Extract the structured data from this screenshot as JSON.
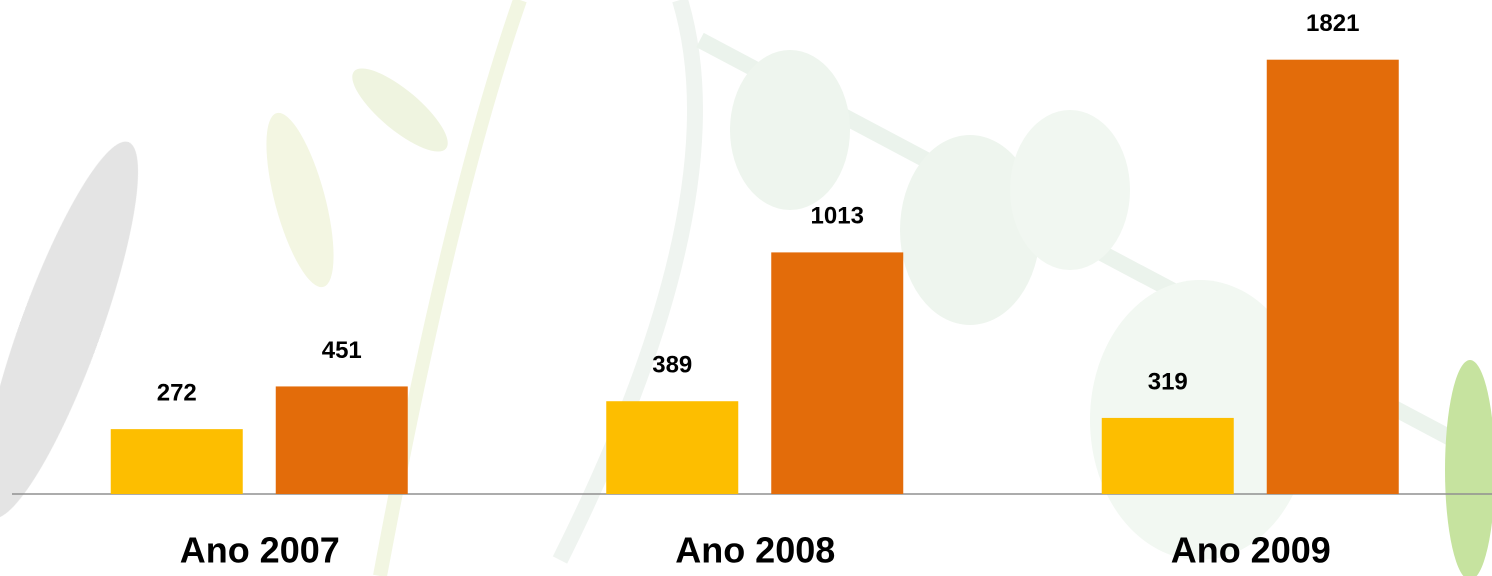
{
  "chart_data": {
    "type": "bar",
    "categories": [
      "Ano 2007",
      "Ano 2008",
      "Ano 2009"
    ],
    "series": [
      {
        "color": "#fdbe00",
        "values": [
          272,
          389,
          319
        ]
      },
      {
        "color": "#e36c0a",
        "values": [
          451,
          1013,
          1821
        ]
      }
    ],
    "ylim": [
      0,
      2000
    ]
  }
}
